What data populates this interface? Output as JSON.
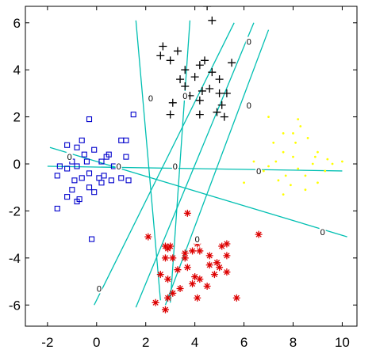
{
  "chart_data": {
    "type": "scatter",
    "title": "",
    "xlabel": "",
    "ylabel": "",
    "xlim": [
      -2.9,
      10.6
    ],
    "ylim": [
      -6.9,
      6.7
    ],
    "x_ticks": [
      -2,
      0,
      2,
      4,
      6,
      8,
      10
    ],
    "y_ticks": [
      -6,
      -4,
      -2,
      0,
      2,
      4,
      6
    ],
    "x_tick_labels": [
      "-2",
      "0",
      "2",
      "4",
      "6",
      "8",
      "10"
    ],
    "y_tick_labels": [
      "-6",
      "-4",
      "-2",
      "0",
      "2",
      "4",
      "6"
    ],
    "grid": false,
    "legend": "none",
    "series": [
      {
        "marker": "square",
        "color": "#0000cc",
        "points": [
          [
            -0.3,
            1.9
          ],
          [
            1.5,
            2.1
          ],
          [
            -0.6,
            1.0
          ],
          [
            1.0,
            1.0
          ],
          [
            1.2,
            1.0
          ],
          [
            -1.2,
            0.8
          ],
          [
            -0.8,
            0.7
          ],
          [
            -0.1,
            0.6
          ],
          [
            0.5,
            0.4
          ],
          [
            -0.5,
            0.4
          ],
          [
            0.4,
            0.3
          ],
          [
            1.2,
            0.3
          ],
          [
            -1.0,
            0.1
          ],
          [
            0.2,
            0.1
          ],
          [
            -0.4,
            0.1
          ],
          [
            0.7,
            -0.1
          ],
          [
            -1.5,
            -0.1
          ],
          [
            -0.8,
            -0.1
          ],
          [
            -1.2,
            -0.2
          ],
          [
            -0.3,
            -0.4
          ],
          [
            -0.6,
            -0.6
          ],
          [
            0.1,
            -0.6
          ],
          [
            1.0,
            -0.6
          ],
          [
            1.3,
            -0.7
          ],
          [
            -0.9,
            -0.7
          ],
          [
            -1.6,
            -0.5
          ],
          [
            0.3,
            -0.5
          ],
          [
            -1.0,
            -1.1
          ],
          [
            0.2,
            -0.8
          ],
          [
            0.6,
            -0.7
          ],
          [
            -1.2,
            -1.4
          ],
          [
            -1.6,
            -1.9
          ],
          [
            -0.7,
            -1.5
          ],
          [
            -0.3,
            -1.0
          ],
          [
            -0.8,
            -1.6
          ],
          [
            -0.1,
            -1.2
          ],
          [
            -0.2,
            -3.2
          ]
        ]
      },
      {
        "marker": "plus",
        "color": "#000000",
        "points": [
          [
            4.5,
            6.7
          ],
          [
            4.7,
            6.1
          ],
          [
            2.7,
            5.0
          ],
          [
            3.3,
            4.8
          ],
          [
            2.6,
            4.6
          ],
          [
            3.0,
            4.4
          ],
          [
            4.4,
            4.4
          ],
          [
            4.2,
            4.2
          ],
          [
            5.5,
            4.3
          ],
          [
            3.6,
            4.0
          ],
          [
            4.7,
            3.9
          ],
          [
            3.4,
            3.6
          ],
          [
            5.0,
            3.6
          ],
          [
            4.0,
            3.7
          ],
          [
            3.6,
            3.3
          ],
          [
            5.3,
            3.0
          ],
          [
            4.6,
            3.2
          ],
          [
            4.3,
            3.1
          ],
          [
            5.0,
            3.0
          ],
          [
            3.8,
            2.9
          ],
          [
            4.2,
            2.7
          ],
          [
            3.1,
            2.6
          ],
          [
            5.1,
            2.5
          ],
          [
            4.9,
            2.2
          ],
          [
            5.2,
            2.0
          ],
          [
            3.0,
            2.1
          ],
          [
            4.2,
            2.1
          ]
        ]
      },
      {
        "marker": "dot",
        "color": "#ffff00",
        "points": [
          [
            7.0,
            2.0
          ],
          [
            8.2,
            1.9
          ],
          [
            8.3,
            1.6
          ],
          [
            7.6,
            1.3
          ],
          [
            8.0,
            1.3
          ],
          [
            8.6,
            1.1
          ],
          [
            7.2,
            0.9
          ],
          [
            8.1,
            0.9
          ],
          [
            9.0,
            0.5
          ],
          [
            7.6,
            0.5
          ],
          [
            8.9,
            0.3
          ],
          [
            9.4,
            0.2
          ],
          [
            10.0,
            0.1
          ],
          [
            7.3,
            0.1
          ],
          [
            8.8,
            0.0
          ],
          [
            9.6,
            0.0
          ],
          [
            6.4,
            0.1
          ],
          [
            7.0,
            -0.1
          ],
          [
            8.2,
            -0.2
          ],
          [
            7.7,
            -0.5
          ],
          [
            8.5,
            -0.5
          ],
          [
            9.0,
            -0.8
          ],
          [
            7.9,
            -0.9
          ],
          [
            6.0,
            -0.8
          ],
          [
            8.5,
            -1.1
          ],
          [
            7.6,
            -1.3
          ],
          [
            7.4,
            -0.7
          ],
          [
            9.3,
            -0.3
          ],
          [
            6.8,
            -0.3
          ],
          [
            8.0,
            0.3
          ]
        ]
      },
      {
        "marker": "asterisk",
        "color": "#dd0000",
        "points": [
          [
            3.7,
            -2.1
          ],
          [
            2.1,
            -3.1
          ],
          [
            6.6,
            -3.0
          ],
          [
            2.8,
            -3.5
          ],
          [
            2.9,
            -3.6
          ],
          [
            3.0,
            -3.5
          ],
          [
            4.1,
            -3.4
          ],
          [
            5.3,
            -3.4
          ],
          [
            5.1,
            -3.5
          ],
          [
            4.2,
            -3.7
          ],
          [
            3.9,
            -3.7
          ],
          [
            3.6,
            -3.8
          ],
          [
            4.6,
            -3.9
          ],
          [
            5.3,
            -3.9
          ],
          [
            2.8,
            -4.0
          ],
          [
            3.1,
            -4.0
          ],
          [
            3.6,
            -4.0
          ],
          [
            4.9,
            -4.2
          ],
          [
            4.6,
            -4.3
          ],
          [
            5.0,
            -4.4
          ],
          [
            3.7,
            -4.4
          ],
          [
            3.3,
            -4.5
          ],
          [
            2.6,
            -4.7
          ],
          [
            2.9,
            -4.9
          ],
          [
            4.0,
            -4.8
          ],
          [
            4.2,
            -4.9
          ],
          [
            5.3,
            -4.6
          ],
          [
            3.9,
            -5.1
          ],
          [
            3.4,
            -5.3
          ],
          [
            2.4,
            -5.9
          ],
          [
            2.9,
            -5.7
          ],
          [
            2.8,
            -6.2
          ],
          [
            4.5,
            -5.2
          ],
          [
            4.1,
            -5.7
          ],
          [
            5.7,
            -5.7
          ],
          [
            3.1,
            -5.5
          ],
          [
            4.8,
            -4.7
          ]
        ]
      }
    ],
    "boundaries": {
      "color": "#00bfb2",
      "label": "0",
      "lines": [
        {
          "from": [
            1.6,
            6.1
          ],
          "to": [
            2.6,
            -5.8
          ]
        },
        {
          "from": [
            3.8,
            6.1
          ],
          "to": [
            3.0,
            -5.9
          ]
        },
        {
          "from": [
            6.4,
            6.0
          ],
          "to": [
            1.6,
            -6.1
          ]
        },
        {
          "from": [
            7.0,
            5.7
          ],
          "to": [
            2.8,
            -6.0
          ]
        },
        {
          "from": [
            -1.9,
            0.7
          ],
          "to": [
            10.2,
            -3.1
          ]
        },
        {
          "from": [
            -2.0,
            -0.1
          ],
          "to": [
            10.0,
            -0.3
          ]
        },
        {
          "from": [
            5.6,
            6.0
          ],
          "to": [
            -0.1,
            -6.0
          ]
        }
      ],
      "label_positions": [
        [
          2.2,
          2.8
        ],
        [
          3.6,
          2.9
        ],
        [
          6.2,
          5.2
        ],
        [
          6.2,
          2.5
        ],
        [
          -1.1,
          0.3
        ],
        [
          0.9,
          -0.1
        ],
        [
          3.2,
          -0.1
        ],
        [
          6.6,
          -0.3
        ],
        [
          9.2,
          -2.9
        ],
        [
          4.1,
          -3.2
        ],
        [
          0.1,
          -5.3
        ]
      ]
    }
  }
}
